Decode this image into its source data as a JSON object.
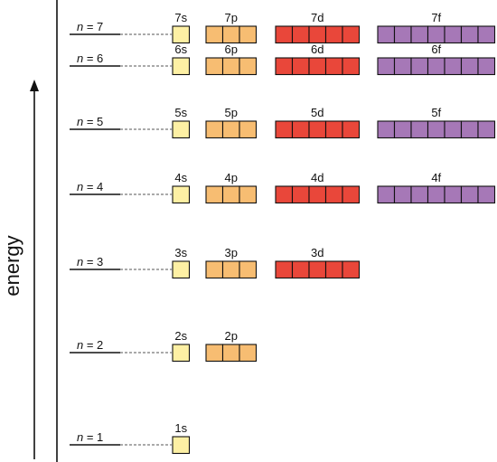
{
  "axis": {
    "label": "energy"
  },
  "colors": {
    "s": "#fdf0a4",
    "p": "#f7bd72",
    "d": "#e9473a",
    "f": "#a678b7",
    "box_stroke": "#111111",
    "dashed": "#777777"
  },
  "levels": [
    {
      "n": 7,
      "label_var": "n",
      "label_rest": " = 7",
      "subshells": [
        {
          "type": "s",
          "label": "7s",
          "boxes": 1
        },
        {
          "type": "p",
          "label": "7p",
          "boxes": 3
        },
        {
          "type": "d",
          "label": "7d",
          "boxes": 5
        },
        {
          "type": "f",
          "label": "7f",
          "boxes": 7
        }
      ]
    },
    {
      "n": 6,
      "label_var": "n",
      "label_rest": " = 6",
      "subshells": [
        {
          "type": "s",
          "label": "6s",
          "boxes": 1
        },
        {
          "type": "p",
          "label": "6p",
          "boxes": 3
        },
        {
          "type": "d",
          "label": "6d",
          "boxes": 5
        },
        {
          "type": "f",
          "label": "6f",
          "boxes": 7
        }
      ]
    },
    {
      "n": 5,
      "label_var": "n",
      "label_rest": " = 5",
      "subshells": [
        {
          "type": "s",
          "label": "5s",
          "boxes": 1
        },
        {
          "type": "p",
          "label": "5p",
          "boxes": 3
        },
        {
          "type": "d",
          "label": "5d",
          "boxes": 5
        },
        {
          "type": "f",
          "label": "5f",
          "boxes": 7
        }
      ]
    },
    {
      "n": 4,
      "label_var": "n",
      "label_rest": " = 4",
      "subshells": [
        {
          "type": "s",
          "label": "4s",
          "boxes": 1
        },
        {
          "type": "p",
          "label": "4p",
          "boxes": 3
        },
        {
          "type": "d",
          "label": "4d",
          "boxes": 5
        },
        {
          "type": "f",
          "label": "4f",
          "boxes": 7
        }
      ]
    },
    {
      "n": 3,
      "label_var": "n",
      "label_rest": " = 3",
      "subshells": [
        {
          "type": "s",
          "label": "3s",
          "boxes": 1
        },
        {
          "type": "p",
          "label": "3p",
          "boxes": 3
        },
        {
          "type": "d",
          "label": "3d",
          "boxes": 5
        }
      ]
    },
    {
      "n": 2,
      "label_var": "n",
      "label_rest": " = 2",
      "subshells": [
        {
          "type": "s",
          "label": "2s",
          "boxes": 1
        },
        {
          "type": "p",
          "label": "2p",
          "boxes": 3
        }
      ]
    },
    {
      "n": 1,
      "label_var": "n",
      "label_rest": " = 1",
      "subshells": [
        {
          "type": "s",
          "label": "1s",
          "boxes": 1
        }
      ]
    }
  ]
}
